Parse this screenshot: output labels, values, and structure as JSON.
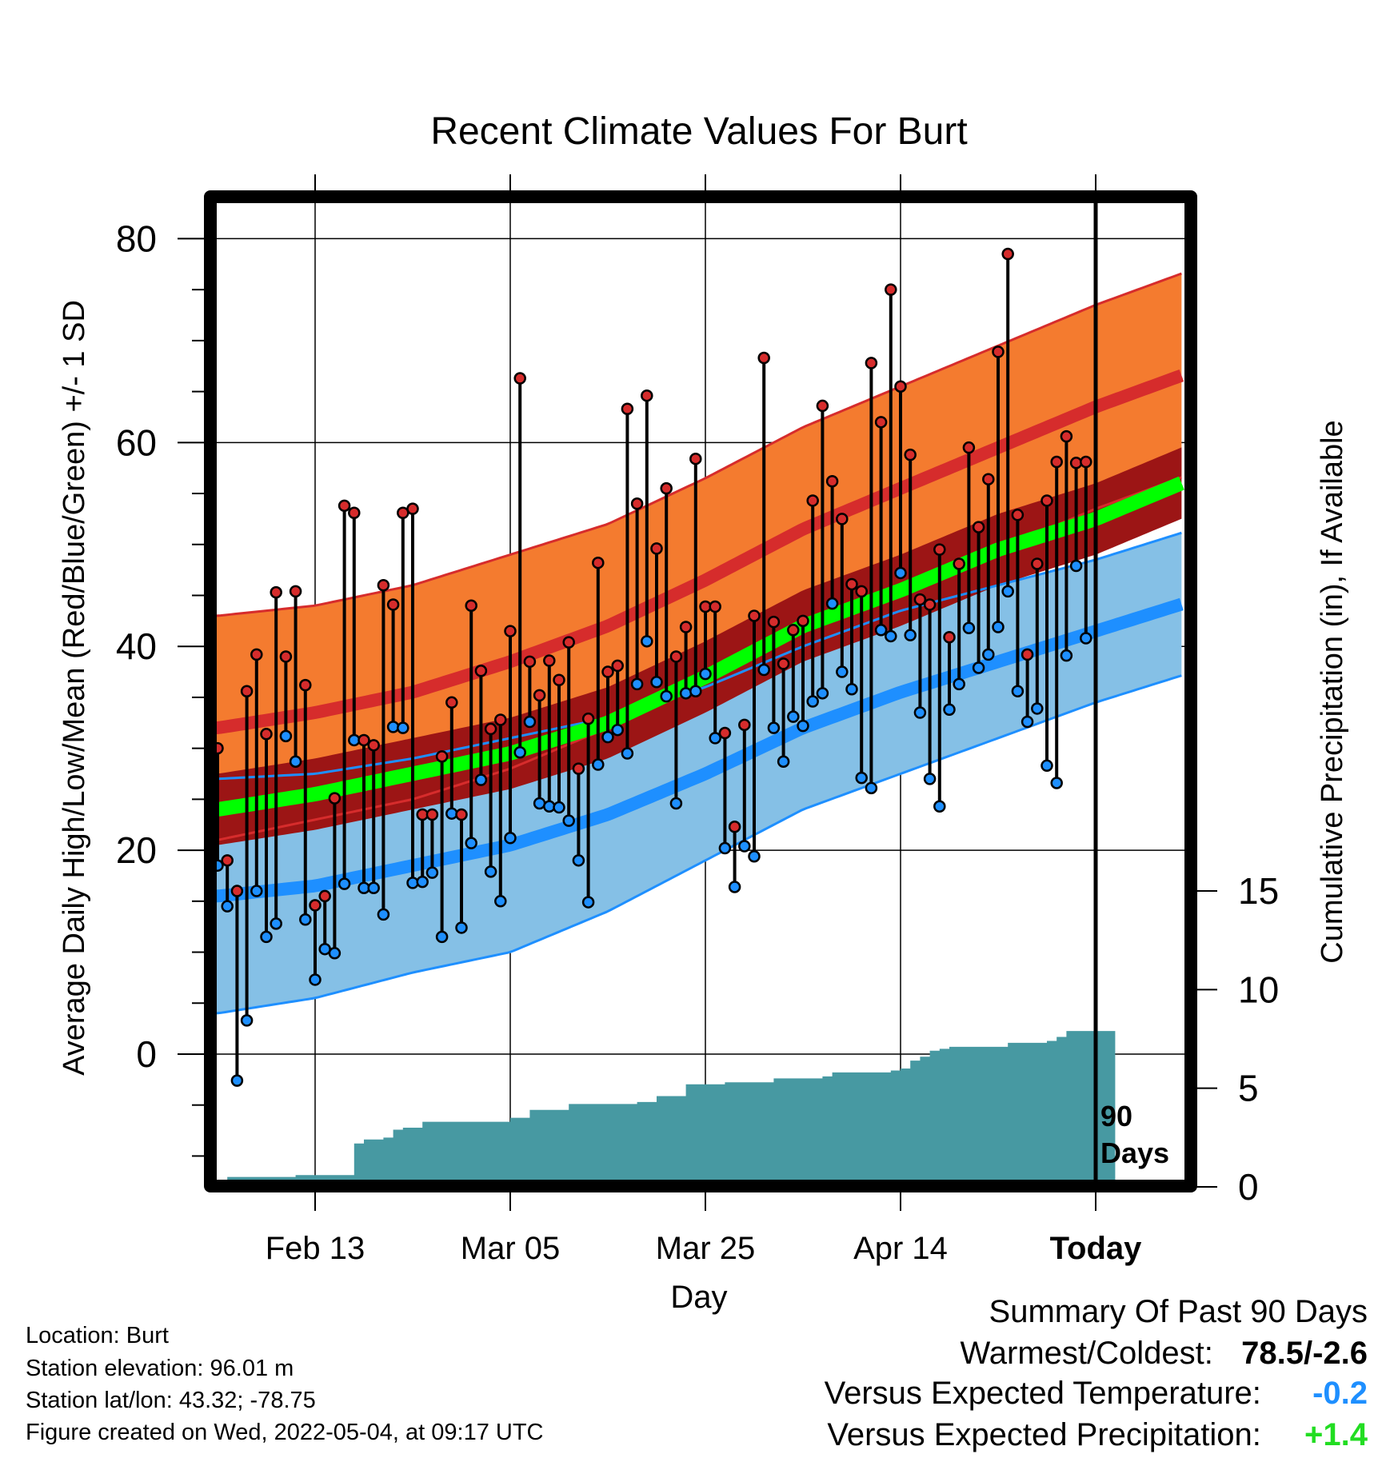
{
  "chart_data": {
    "type": "line",
    "title": "Recent Climate Values For Burt",
    "xlabel": "Day",
    "ylabel_left": "Average Daily High/Low/Mean (Red/Blue/Green) +/- 1 SD",
    "ylabel_right": "Cumulative Precipitation (in), If Available",
    "x_tick_labels": [
      "Feb 13",
      "Mar 05",
      "Mar 25",
      "Apr 14",
      "Today"
    ],
    "x_tick_days": [
      10,
      30,
      50,
      70,
      90
    ],
    "y_ticks_left": [
      0,
      20,
      40,
      60,
      80
    ],
    "y_ticks_right": [
      0,
      5,
      10,
      15
    ],
    "ylim_left": [
      -12.4,
      83.8
    ],
    "ylim_right": [
      0,
      15
    ],
    "today_marker_label": [
      "90",
      "Days"
    ],
    "grid": true,
    "colors": {
      "high_band": "#f47b2f",
      "high_mean": "#d62c2c",
      "low_band": "#85c0e6",
      "low_mean": "#1e8fff",
      "mean_band": "#9c1515",
      "mean_line": "#00ff00",
      "precip": "#4799a2",
      "high_dot": "#d62c2c",
      "low_dot": "#1e8fff"
    },
    "normals": {
      "days": [
        0,
        10,
        20,
        30,
        40,
        50,
        60,
        70,
        80,
        90,
        100
      ],
      "high_mean": [
        32,
        33.5,
        35.5,
        38.5,
        42,
        46.5,
        51.5,
        55.5,
        59.5,
        63.5,
        67
      ],
      "high_sd": [
        11,
        10.5,
        10.5,
        10.5,
        10,
        10,
        10,
        10,
        10,
        10,
        10
      ],
      "low_mean": [
        15.5,
        16.5,
        18.5,
        20.5,
        23.5,
        27.5,
        32,
        35.5,
        38.5,
        41.5,
        44.5
      ],
      "low_sd": [
        11.5,
        11,
        10.5,
        10.5,
        9.5,
        8.5,
        8,
        8,
        7.5,
        7,
        7
      ],
      "mean": [
        24,
        25.5,
        27.5,
        29.5,
        32.5,
        37,
        42,
        45.5,
        49.5,
        52.5,
        56.5
      ],
      "mean_sd": [
        3.5,
        3.5,
        3.5,
        3.5,
        3.5,
        3.5,
        3.5,
        3.5,
        3.5,
        3.5,
        3.5
      ]
    },
    "daily_temps": [
      {
        "day": 0,
        "high": 30.0,
        "low": 18.5
      },
      {
        "day": 1,
        "high": 19.0,
        "low": 14.5
      },
      {
        "day": 2,
        "high": 16.0,
        "low": -2.6
      },
      {
        "day": 3,
        "high": 35.6,
        "low": 3.3
      },
      {
        "day": 4,
        "high": 39.2,
        "low": 16.0
      },
      {
        "day": 5,
        "high": 31.4,
        "low": 11.5
      },
      {
        "day": 6,
        "high": 45.3,
        "low": 12.8
      },
      {
        "day": 7,
        "high": 39.0,
        "low": 31.2
      },
      {
        "day": 8,
        "high": 45.4,
        "low": 28.7
      },
      {
        "day": 9,
        "high": 36.2,
        "low": 13.2
      },
      {
        "day": 10,
        "high": 14.6,
        "low": 7.3
      },
      {
        "day": 11,
        "high": 15.5,
        "low": 10.3
      },
      {
        "day": 12,
        "high": 25.1,
        "low": 9.9
      },
      {
        "day": 13,
        "high": 53.8,
        "low": 16.7
      },
      {
        "day": 14,
        "high": 53.1,
        "low": 30.8
      },
      {
        "day": 15,
        "high": 30.8,
        "low": 16.3
      },
      {
        "day": 16,
        "high": 30.3,
        "low": 16.3
      },
      {
        "day": 17,
        "high": 46.0,
        "low": 13.7
      },
      {
        "day": 18,
        "high": 44.1,
        "low": 32.1
      },
      {
        "day": 19,
        "high": 53.1,
        "low": 32.0
      },
      {
        "day": 20,
        "high": 53.5,
        "low": 16.8
      },
      {
        "day": 21,
        "high": 23.5,
        "low": 16.9
      },
      {
        "day": 22,
        "high": 23.5,
        "low": 17.8
      },
      {
        "day": 23,
        "high": 29.2,
        "low": 11.5
      },
      {
        "day": 24,
        "high": 34.5,
        "low": 23.6
      },
      {
        "day": 25,
        "high": 23.5,
        "low": 12.4
      },
      {
        "day": 26,
        "high": 44.0,
        "low": 20.7
      },
      {
        "day": 27,
        "high": 37.6,
        "low": 26.9
      },
      {
        "day": 28,
        "high": 31.9,
        "low": 17.9
      },
      {
        "day": 29,
        "high": 32.8,
        "low": 15.0
      },
      {
        "day": 30,
        "high": 41.5,
        "low": 21.2
      },
      {
        "day": 31,
        "high": 66.3,
        "low": 29.6
      },
      {
        "day": 32,
        "high": 38.5,
        "low": 32.6
      },
      {
        "day": 33,
        "high": 35.2,
        "low": 24.6
      },
      {
        "day": 34,
        "high": 38.6,
        "low": 24.3
      },
      {
        "day": 35,
        "high": 36.7,
        "low": 24.2
      },
      {
        "day": 36,
        "high": 40.4,
        "low": 22.9
      },
      {
        "day": 37,
        "high": 28.0,
        "low": 19.0
      },
      {
        "day": 38,
        "high": 32.9,
        "low": 14.9
      },
      {
        "day": 39,
        "high": 48.2,
        "low": 28.4
      },
      {
        "day": 40,
        "high": 37.5,
        "low": 31.1
      },
      {
        "day": 41,
        "high": 38.1,
        "low": 31.8
      },
      {
        "day": 42,
        "high": 63.3,
        "low": 29.5
      },
      {
        "day": 43,
        "high": 54.0,
        "low": 36.3
      },
      {
        "day": 44,
        "high": 64.6,
        "low": 40.5
      },
      {
        "day": 45,
        "high": 49.6,
        "low": 36.5
      },
      {
        "day": 46,
        "high": 55.5,
        "low": 35.1
      },
      {
        "day": 47,
        "high": 39.0,
        "low": 24.6
      },
      {
        "day": 48,
        "high": 41.9,
        "low": 35.4
      },
      {
        "day": 49,
        "high": 58.4,
        "low": 35.6
      },
      {
        "day": 50,
        "high": 43.9,
        "low": 37.3
      },
      {
        "day": 51,
        "high": 43.9,
        "low": 31.0
      },
      {
        "day": 52,
        "high": 31.5,
        "low": 20.2
      },
      {
        "day": 53,
        "high": 22.3,
        "low": 16.4
      },
      {
        "day": 54,
        "high": 32.3,
        "low": 20.4
      },
      {
        "day": 55,
        "high": 43.0,
        "low": 19.4
      },
      {
        "day": 56,
        "high": 68.3,
        "low": 37.7
      },
      {
        "day": 57,
        "high": 42.4,
        "low": 32.0
      },
      {
        "day": 58,
        "high": 38.3,
        "low": 28.7
      },
      {
        "day": 59,
        "high": 41.6,
        "low": 33.1
      },
      {
        "day": 60,
        "high": 42.5,
        "low": 32.2
      },
      {
        "day": 61,
        "high": 54.3,
        "low": 34.6
      },
      {
        "day": 62,
        "high": 63.6,
        "low": 35.4
      },
      {
        "day": 63,
        "high": 56.2,
        "low": 44.2
      },
      {
        "day": 64,
        "high": 52.5,
        "low": 37.5
      },
      {
        "day": 65,
        "high": 46.1,
        "low": 35.8
      },
      {
        "day": 66,
        "high": 45.4,
        "low": 27.1
      },
      {
        "day": 67,
        "high": 67.8,
        "low": 26.1
      },
      {
        "day": 68,
        "high": 62.0,
        "low": 41.6
      },
      {
        "day": 69,
        "high": 75.0,
        "low": 41.0
      },
      {
        "day": 70,
        "high": 65.5,
        "low": 47.2
      },
      {
        "day": 71,
        "high": 58.8,
        "low": 41.1
      },
      {
        "day": 72,
        "high": 44.6,
        "low": 33.5
      },
      {
        "day": 73,
        "high": 44.1,
        "low": 27.0
      },
      {
        "day": 74,
        "high": 49.5,
        "low": 24.3
      },
      {
        "day": 75,
        "high": 40.9,
        "low": 33.8
      },
      {
        "day": 76,
        "high": 48.1,
        "low": 36.3
      },
      {
        "day": 77,
        "high": 59.5,
        "low": 41.8
      },
      {
        "day": 78,
        "high": 51.7,
        "low": 37.9
      },
      {
        "day": 79,
        "high": 56.4,
        "low": 39.2
      },
      {
        "day": 80,
        "high": 68.9,
        "low": 41.9
      },
      {
        "day": 81,
        "high": 78.5,
        "low": 45.4
      },
      {
        "day": 82,
        "high": 52.9,
        "low": 35.6
      },
      {
        "day": 83,
        "high": 39.2,
        "low": 32.6
      },
      {
        "day": 84,
        "high": 48.1,
        "low": 33.9
      },
      {
        "day": 85,
        "high": 54.3,
        "low": 28.3
      },
      {
        "day": 86,
        "high": 58.1,
        "low": 26.6
      },
      {
        "day": 87,
        "high": 60.6,
        "low": 39.1
      },
      {
        "day": 88,
        "high": 58.0,
        "low": 47.9
      },
      {
        "day": 89,
        "high": 58.1,
        "low": 40.8
      }
    ],
    "cumulative_precip": {
      "days": [
        0,
        1,
        7,
        8,
        13,
        14,
        15,
        17,
        18,
        19,
        21,
        22,
        24,
        29,
        30,
        32,
        35,
        36,
        43,
        45,
        47,
        48,
        50,
        52,
        55,
        57,
        60,
        62,
        63,
        67,
        69,
        70,
        71,
        72,
        73,
        74,
        75,
        78,
        81,
        85,
        86,
        87,
        92
      ],
      "values": [
        0.2,
        0.5,
        0.5,
        0.6,
        0.6,
        2.2,
        2.4,
        2.5,
        2.9,
        3.0,
        3.3,
        3.3,
        3.3,
        3.3,
        3.5,
        3.9,
        3.9,
        4.2,
        4.3,
        4.6,
        4.6,
        5.2,
        5.2,
        5.3,
        5.3,
        5.5,
        5.5,
        5.6,
        5.8,
        5.8,
        5.9,
        6.0,
        6.4,
        6.6,
        6.9,
        7.0,
        7.1,
        7.1,
        7.3,
        7.4,
        7.6,
        7.9,
        7.9
      ]
    }
  },
  "station_info": {
    "location": "Location: Burt",
    "elevation": "Station elevation: 96.01 m",
    "latlon": "Station lat/lon: 43.32; -78.75",
    "created": "Figure created on Wed, 2022-05-04, at 09:17 UTC"
  },
  "summary": {
    "title": "Summary Of Past 90 Days",
    "warm_cold_label": "Warmest/Coldest:",
    "warm_cold_value": "78.5/-2.6",
    "temp_label": "Versus Expected Temperature:",
    "temp_value": "-0.2",
    "temp_color": "#1e8fff",
    "precip_label": "Versus Expected Precipitation:",
    "precip_value": "+1.4",
    "precip_color": "#22dd22"
  }
}
